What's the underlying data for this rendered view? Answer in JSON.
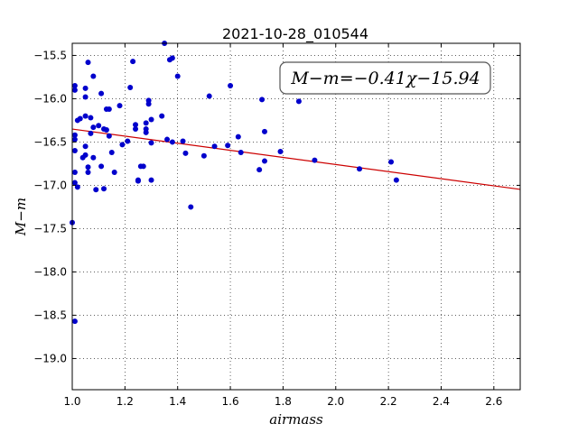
{
  "chart_data": {
    "type": "scatter",
    "title": "2021-10-28_010544",
    "xlabel": "airmass",
    "ylabel": "M−m",
    "xlim": [
      1.0,
      2.7
    ],
    "ylim": [
      -19.36,
      -15.36
    ],
    "x_ticks": [
      "1.0",
      "1.2",
      "1.4",
      "1.6",
      "1.8",
      "2.0",
      "2.2",
      "2.4",
      "2.6"
    ],
    "x_tick_values": [
      1.0,
      1.2,
      1.4,
      1.6,
      1.8,
      2.0,
      2.2,
      2.4,
      2.6
    ],
    "y_ticks": [
      "−15.5",
      "−16.0",
      "−16.5",
      "−17.0",
      "−17.5",
      "−18.0",
      "−18.5",
      "−19.0"
    ],
    "y_tick_values": [
      -15.5,
      -16.0,
      -16.5,
      -17.0,
      -17.5,
      -18.0,
      -18.5,
      -19.0
    ],
    "grid": true,
    "annotation": "M−m=−0.41χ−15.94",
    "fit": {
      "slope": -0.41,
      "intercept": -15.94,
      "color": "#cc0000"
    },
    "point_color": "#0000cc",
    "points": [
      [
        1.0,
        -17.43
      ],
      [
        1.01,
        -16.6
      ],
      [
        1.01,
        -16.85
      ],
      [
        1.01,
        -16.97
      ],
      [
        1.01,
        -18.57
      ],
      [
        1.01,
        -15.85
      ],
      [
        1.01,
        -15.9
      ],
      [
        1.01,
        -16.42
      ],
      [
        1.01,
        -16.47
      ],
      [
        1.02,
        -16.25
      ],
      [
        1.02,
        -17.02
      ],
      [
        1.03,
        -16.23
      ],
      [
        1.04,
        -16.68
      ],
      [
        1.05,
        -15.88
      ],
      [
        1.05,
        -15.98
      ],
      [
        1.05,
        -16.55
      ],
      [
        1.05,
        -16.65
      ],
      [
        1.05,
        -16.2
      ],
      [
        1.06,
        -15.58
      ],
      [
        1.06,
        -16.79
      ],
      [
        1.06,
        -16.85
      ],
      [
        1.07,
        -16.22
      ],
      [
        1.07,
        -16.4
      ],
      [
        1.08,
        -15.74
      ],
      [
        1.08,
        -16.33
      ],
      [
        1.08,
        -16.68
      ],
      [
        1.09,
        -17.05
      ],
      [
        1.1,
        -16.31
      ],
      [
        1.11,
        -15.94
      ],
      [
        1.11,
        -16.78
      ],
      [
        1.12,
        -16.35
      ],
      [
        1.12,
        -17.04
      ],
      [
        1.13,
        -16.12
      ],
      [
        1.13,
        -16.36
      ],
      [
        1.14,
        -16.12
      ],
      [
        1.14,
        -16.43
      ],
      [
        1.15,
        -16.62
      ],
      [
        1.16,
        -16.85
      ],
      [
        1.18,
        -16.08
      ],
      [
        1.19,
        -16.53
      ],
      [
        1.21,
        -16.49
      ],
      [
        1.22,
        -15.87
      ],
      [
        1.23,
        -15.57
      ],
      [
        1.24,
        -16.35
      ],
      [
        1.24,
        -16.3
      ],
      [
        1.25,
        -16.95
      ],
      [
        1.25,
        -16.94
      ],
      [
        1.26,
        -16.78
      ],
      [
        1.27,
        -16.78
      ],
      [
        1.28,
        -16.39
      ],
      [
        1.28,
        -16.28
      ],
      [
        1.28,
        -16.35
      ],
      [
        1.29,
        -16.02
      ],
      [
        1.29,
        -16.06
      ],
      [
        1.3,
        -16.24
      ],
      [
        1.3,
        -16.51
      ],
      [
        1.3,
        -16.94
      ],
      [
        1.34,
        -16.2
      ],
      [
        1.35,
        -15.36
      ],
      [
        1.36,
        -16.47
      ],
      [
        1.37,
        -15.55
      ],
      [
        1.38,
        -15.53
      ],
      [
        1.38,
        -16.5
      ],
      [
        1.4,
        -15.74
      ],
      [
        1.42,
        -16.49
      ],
      [
        1.43,
        -16.63
      ],
      [
        1.45,
        -17.25
      ],
      [
        1.5,
        -16.66
      ],
      [
        1.52,
        -15.97
      ],
      [
        1.54,
        -16.55
      ],
      [
        1.59,
        -16.54
      ],
      [
        1.6,
        -15.85
      ],
      [
        1.63,
        -16.44
      ],
      [
        1.64,
        -16.62
      ],
      [
        1.71,
        -16.82
      ],
      [
        1.72,
        -16.01
      ],
      [
        1.73,
        -16.38
      ],
      [
        1.73,
        -16.72
      ],
      [
        1.79,
        -16.61
      ],
      [
        1.86,
        -16.03
      ],
      [
        1.92,
        -16.71
      ],
      [
        2.09,
        -16.81
      ],
      [
        2.21,
        -16.73
      ],
      [
        2.23,
        -16.94
      ]
    ]
  }
}
